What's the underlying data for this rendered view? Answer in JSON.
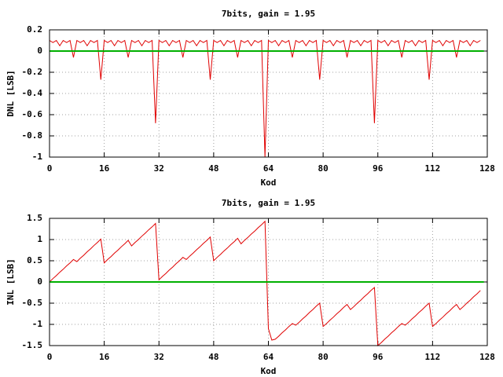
{
  "chart_data": [
    {
      "type": "line",
      "title": "7bits, gain = 1.95",
      "xlabel": "Kod",
      "ylabel": "DNL [LSB]",
      "xlim": [
        0,
        128
      ],
      "xticks": [
        0,
        16,
        32,
        48,
        64,
        80,
        96,
        112,
        128
      ],
      "ylim": [
        -1,
        0.2
      ],
      "yticks": [
        0.2,
        0,
        -0.2,
        -0.4,
        -0.6,
        -0.8,
        -1
      ],
      "grid": true,
      "series": [
        {
          "color": "#e00000",
          "x": [
            0,
            1,
            2,
            3,
            4,
            5,
            6,
            7,
            8,
            9,
            10,
            11,
            12,
            13,
            14,
            15,
            16,
            17,
            18,
            19,
            20,
            21,
            22,
            23,
            24,
            25,
            26,
            27,
            28,
            29,
            30,
            31,
            32,
            33,
            34,
            35,
            36,
            37,
            38,
            39,
            40,
            41,
            42,
            43,
            44,
            45,
            46,
            47,
            48,
            49,
            50,
            51,
            52,
            53,
            54,
            55,
            56,
            57,
            58,
            59,
            60,
            61,
            62,
            63,
            64,
            65,
            66,
            67,
            68,
            69,
            70,
            71,
            72,
            73,
            74,
            75,
            76,
            77,
            78,
            79,
            80,
            81,
            82,
            83,
            84,
            85,
            86,
            87,
            88,
            89,
            90,
            91,
            92,
            93,
            94,
            95,
            96,
            97,
            98,
            99,
            100,
            101,
            102,
            103,
            104,
            105,
            106,
            107,
            108,
            109,
            110,
            111,
            112,
            113,
            114,
            115,
            116,
            117,
            118,
            119,
            120,
            121,
            122,
            123,
            124,
            125,
            126
          ],
          "values": [
            0.1,
            0.08,
            0.1,
            0.05,
            0.1,
            0.08,
            0.1,
            -0.06,
            0.1,
            0.08,
            0.1,
            0.05,
            0.1,
            0.08,
            0.1,
            -0.27,
            0.1,
            0.08,
            0.1,
            0.05,
            0.1,
            0.08,
            0.1,
            -0.06,
            0.1,
            0.08,
            0.1,
            0.05,
            0.1,
            0.08,
            0.1,
            -0.68,
            0.1,
            0.08,
            0.1,
            0.05,
            0.1,
            0.08,
            0.1,
            -0.06,
            0.1,
            0.08,
            0.1,
            0.05,
            0.1,
            0.08,
            0.1,
            -0.27,
            0.1,
            0.08,
            0.1,
            0.05,
            0.1,
            0.08,
            0.1,
            -0.06,
            0.1,
            0.08,
            0.1,
            0.05,
            0.1,
            0.08,
            0.1,
            -1,
            0.1,
            0.08,
            0.1,
            0.05,
            0.1,
            0.08,
            0.1,
            -0.06,
            0.1,
            0.08,
            0.1,
            0.05,
            0.1,
            0.08,
            0.1,
            -0.27,
            0.1,
            0.08,
            0.1,
            0.05,
            0.1,
            0.08,
            0.1,
            -0.06,
            0.1,
            0.08,
            0.1,
            0.05,
            0.1,
            0.08,
            0.1,
            -0.68,
            0.1,
            0.08,
            0.1,
            0.05,
            0.1,
            0.08,
            0.1,
            -0.06,
            0.1,
            0.08,
            0.1,
            0.05,
            0.1,
            0.08,
            0.1,
            -0.27,
            0.1,
            0.08,
            0.1,
            0.05,
            0.1,
            0.08,
            0.1,
            -0.06,
            0.1,
            0.08,
            0.1,
            0.05,
            0.1,
            0.08,
            0.1
          ]
        },
        {
          "color": "#00b000",
          "x": [
            0,
            127
          ],
          "values": [
            0,
            0
          ]
        }
      ]
    },
    {
      "type": "line",
      "title": "7bits, gain = 1.95",
      "xlabel": "Kod",
      "ylabel": "INL [LSB]",
      "xlim": [
        0,
        128
      ],
      "xticks": [
        0,
        16,
        32,
        48,
        64,
        80,
        96,
        112,
        128
      ],
      "ylim": [
        -1.5,
        1.5
      ],
      "yticks": [
        1.5,
        1,
        0.5,
        0,
        -0.5,
        -1,
        -1.5
      ],
      "grid": true,
      "series": [
        {
          "color": "#e00000",
          "x": [
            0,
            1,
            2,
            3,
            4,
            5,
            6,
            7,
            8,
            9,
            10,
            11,
            12,
            13,
            14,
            15,
            16,
            17,
            18,
            19,
            20,
            21,
            22,
            23,
            24,
            25,
            26,
            27,
            28,
            29,
            30,
            31,
            32,
            33,
            34,
            35,
            36,
            37,
            38,
            39,
            40,
            41,
            42,
            43,
            44,
            45,
            46,
            47,
            48,
            49,
            50,
            51,
            52,
            53,
            54,
            55,
            56,
            57,
            58,
            59,
            60,
            61,
            62,
            63,
            64,
            65,
            66,
            67,
            68,
            69,
            70,
            71,
            72,
            73,
            74,
            75,
            76,
            77,
            78,
            79,
            80,
            81,
            82,
            83,
            84,
            85,
            86,
            87,
            88,
            89,
            90,
            91,
            92,
            93,
            94,
            95,
            96,
            97,
            98,
            99,
            100,
            101,
            102,
            103,
            104,
            105,
            106,
            107,
            108,
            109,
            110,
            111,
            112,
            113,
            114,
            115,
            116,
            117,
            118,
            119,
            120,
            121,
            122,
            123,
            124,
            125,
            126
          ],
          "values": [
            0,
            0.08,
            0.15,
            0.23,
            0.3,
            0.38,
            0.45,
            0.53,
            0.48,
            0.56,
            0.63,
            0.71,
            0.78,
            0.86,
            0.93,
            1.01,
            0.45,
            0.53,
            0.6,
            0.68,
            0.75,
            0.83,
            0.9,
            0.98,
            0.85,
            0.93,
            1.0,
            1.08,
            1.15,
            1.23,
            1.3,
            1.38,
            0.05,
            0.13,
            0.2,
            0.28,
            0.35,
            0.43,
            0.5,
            0.58,
            0.53,
            0.61,
            0.68,
            0.76,
            0.83,
            0.91,
            0.98,
            1.06,
            0.5,
            0.58,
            0.65,
            0.73,
            0.8,
            0.88,
            0.95,
            1.03,
            0.9,
            0.98,
            1.05,
            1.13,
            1.2,
            1.28,
            1.35,
            1.43,
            -1.1,
            -1.37,
            -1.35,
            -1.28,
            -1.2,
            -1.13,
            -1.05,
            -0.98,
            -1.02,
            -0.95,
            -0.87,
            -0.8,
            -0.72,
            -0.65,
            -0.57,
            -0.5,
            -1.05,
            -0.98,
            -0.9,
            -0.83,
            -0.75,
            -0.68,
            -0.6,
            -0.53,
            -0.65,
            -0.58,
            -0.5,
            -0.43,
            -0.35,
            -0.28,
            -0.2,
            -0.13,
            -1.5,
            -1.43,
            -1.35,
            -1.28,
            -1.2,
            -1.13,
            -1.05,
            -0.98,
            -1.02,
            -0.95,
            -0.87,
            -0.8,
            -0.72,
            -0.65,
            -0.57,
            -0.5,
            -1.05,
            -0.98,
            -0.9,
            -0.83,
            -0.75,
            -0.68,
            -0.6,
            -0.53,
            -0.65,
            -0.58,
            -0.5,
            -0.43,
            -0.35,
            -0.28,
            -0.2
          ]
        },
        {
          "color": "#00b000",
          "x": [
            0,
            127
          ],
          "values": [
            0,
            0
          ]
        }
      ]
    }
  ]
}
